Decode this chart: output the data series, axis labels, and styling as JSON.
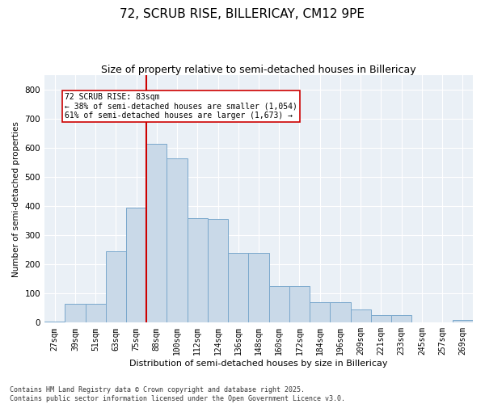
{
  "title": "72, SCRUB RISE, BILLERICAY, CM12 9PE",
  "subtitle": "Size of property relative to semi-detached houses in Billericay",
  "xlabel": "Distribution of semi-detached houses by size in Billericay",
  "ylabel": "Number of semi-detached properties",
  "bins": [
    "27sqm",
    "39sqm",
    "51sqm",
    "63sqm",
    "75sqm",
    "88sqm",
    "100sqm",
    "112sqm",
    "124sqm",
    "136sqm",
    "148sqm",
    "160sqm",
    "172sqm",
    "184sqm",
    "196sqm",
    "209sqm",
    "221sqm",
    "233sqm",
    "245sqm",
    "257sqm",
    "269sqm"
  ],
  "bar_heights": [
    5,
    65,
    65,
    245,
    395,
    615,
    565,
    360,
    355,
    240,
    240,
    125,
    125,
    70,
    70,
    45,
    25,
    25,
    0,
    0,
    8
  ],
  "bar_color": "#c9d9e8",
  "bar_edge_color": "#7aa8cc",
  "vline_color": "#cc0000",
  "annotation_text": "72 SCRUB RISE: 83sqm\n← 38% of semi-detached houses are smaller (1,054)\n61% of semi-detached houses are larger (1,673) →",
  "annotation_box_color": "#ffffff",
  "annotation_box_edge_color": "#cc0000",
  "ylim": [
    0,
    850
  ],
  "yticks": [
    0,
    100,
    200,
    300,
    400,
    500,
    600,
    700,
    800
  ],
  "background_color": "#eaf0f6",
  "footer_text": "Contains HM Land Registry data © Crown copyright and database right 2025.\nContains public sector information licensed under the Open Government Licence v3.0.",
  "title_fontsize": 11,
  "subtitle_fontsize": 9,
  "figwidth": 6.0,
  "figheight": 5.0,
  "dpi": 100
}
